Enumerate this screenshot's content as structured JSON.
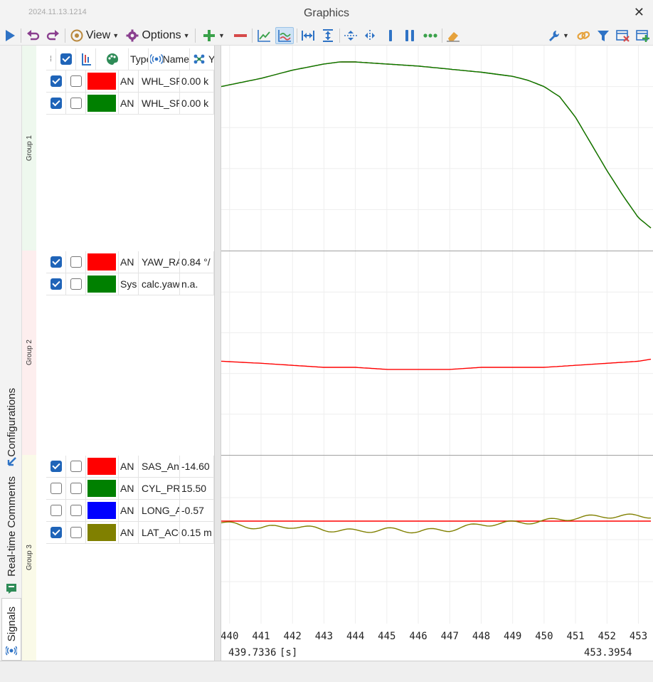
{
  "window": {
    "title": "Graphics",
    "stamp": "2024.11.13.1214"
  },
  "toolbar": {
    "view_label": "View",
    "options_label": "Options"
  },
  "tabs": [
    {
      "label": "Configurations",
      "icon": "arrow-icon"
    },
    {
      "label": "Real-time Comments",
      "icon": "comment-icon"
    },
    {
      "label": "Signals",
      "icon": "signal-icon"
    }
  ],
  "table": {
    "headers": {
      "type": "Type",
      "name": "Name",
      "value": "Y"
    }
  },
  "groups": [
    {
      "label": "Group 1",
      "signals": [
        {
          "checked": true,
          "second": false,
          "color": "#ff0000",
          "type": "AN",
          "name": "WHL_SP",
          "value": "0.00 k"
        },
        {
          "checked": true,
          "second": false,
          "color": "#008000",
          "type": "AN",
          "name": "WHL_SP",
          "value": "0.00 k"
        }
      ]
    },
    {
      "label": "Group 2",
      "signals": [
        {
          "checked": true,
          "second": false,
          "color": "#ff0000",
          "type": "AN",
          "name": "YAW_RA",
          "value": "0.84 °/"
        },
        {
          "checked": true,
          "second": false,
          "color": "#008000",
          "type": "Sys",
          "name": "calc.yaw",
          "value": "n.a."
        }
      ]
    },
    {
      "label": "Group 3",
      "signals": [
        {
          "checked": true,
          "second": false,
          "color": "#ff0000",
          "type": "AN",
          "name": "SAS_Ang",
          "value": "-14.60"
        },
        {
          "checked": false,
          "second": false,
          "color": "#008000",
          "type": "AN",
          "name": "CYL_PRE",
          "value": "15.50"
        },
        {
          "checked": false,
          "second": false,
          "color": "#0000ff",
          "type": "AN",
          "name": "LONG_A",
          "value": "-0.57"
        },
        {
          "checked": true,
          "second": false,
          "color": "#808000",
          "type": "AN",
          "name": "LAT_ACC",
          "value": "0.15 m"
        }
      ]
    }
  ],
  "plot": {
    "x_ticks": [
      "440",
      "441",
      "442",
      "443",
      "444",
      "445",
      "446",
      "447",
      "448",
      "449",
      "450",
      "451",
      "452",
      "453"
    ],
    "x_start": "439.7336",
    "x_unit": "[s]",
    "x_end": "453.3954"
  },
  "chart_data": {
    "type": "line",
    "x_range": [
      439.7336,
      453.3954
    ],
    "panels": [
      {
        "group": "Group 1",
        "series": [
          {
            "name": "WHL_SP",
            "color": "#ff0000",
            "x": [
              439.73,
              441,
              442,
              443,
              443.5,
              444,
              446,
              448,
              449,
              449.5,
              450,
              450.5,
              451,
              451.5,
              452,
              452.5,
              453,
              453.4
            ],
            "y": [
              0.8,
              0.84,
              0.88,
              0.91,
              0.92,
              0.92,
              0.9,
              0.87,
              0.85,
              0.83,
              0.8,
              0.75,
              0.65,
              0.52,
              0.39,
              0.27,
              0.16,
              0.11
            ]
          },
          {
            "name": "WHL_SP",
            "color": "#008000",
            "x": [
              439.73,
              441,
              442,
              443,
              443.5,
              444,
              446,
              448,
              449,
              449.5,
              450,
              450.5,
              451,
              451.5,
              452,
              452.5,
              453,
              453.4
            ],
            "y": [
              0.8,
              0.84,
              0.88,
              0.91,
              0.92,
              0.92,
              0.9,
              0.87,
              0.85,
              0.83,
              0.8,
              0.75,
              0.65,
              0.52,
              0.39,
              0.27,
              0.16,
              0.11
            ]
          }
        ]
      },
      {
        "group": "Group 2",
        "series": [
          {
            "name": "YAW_RA",
            "color": "#ff0000",
            "x": [
              439.73,
              441,
              442,
              443,
              444,
              445,
              446,
              447,
              448,
              449,
              450,
              451,
              452,
              453,
              453.4
            ],
            "y": [
              0.46,
              0.45,
              0.44,
              0.43,
              0.43,
              0.42,
              0.42,
              0.42,
              0.43,
              0.43,
              0.43,
              0.44,
              0.45,
              0.46,
              0.47
            ]
          }
        ]
      },
      {
        "group": "Group 3",
        "series": [
          {
            "name": "SAS_Ang",
            "color": "#ff0000",
            "x": [
              439.73,
              453.4
            ],
            "y": [
              0.61,
              0.61
            ]
          },
          {
            "name": "LAT_ACC",
            "color": "#808000",
            "x": [
              439.73,
              441,
              442,
              443,
              444,
              445,
              446,
              447,
              448,
              449,
              450,
              451,
              452,
              453,
              453.4
            ],
            "y": [
              0.6,
              0.57,
              0.58,
              0.56,
              0.55,
              0.56,
              0.55,
              0.56,
              0.59,
              0.6,
              0.61,
              0.63,
              0.64,
              0.64,
              0.64
            ]
          }
        ]
      }
    ]
  }
}
